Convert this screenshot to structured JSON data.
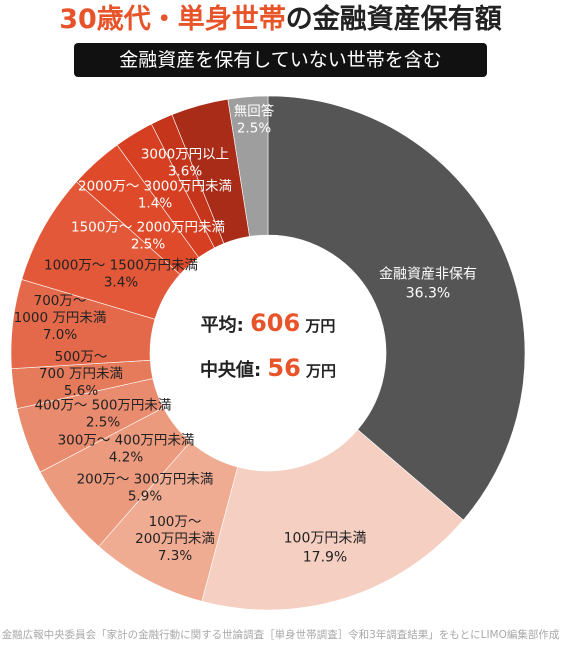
{
  "header": {
    "title_accent": "30歳代・単身世帯",
    "title_rest": "の金融資産保有額",
    "subtitle": "金融資産を保有していない世帯を含む"
  },
  "center": {
    "average_label": "平均",
    "average_sep": ":",
    "average_value": "606",
    "average_unit": "万円",
    "median_label": "中央値",
    "median_sep": ":",
    "median_value": "56",
    "median_unit": "万円",
    "accent_color": "#e8542a"
  },
  "source": "金融広報中央委員会「家計の金融行動に関する世論調査［単身世帯調査］令和3年調査結果」をもとにLIMO編集部作成",
  "chart_data": {
    "type": "pie",
    "donut": true,
    "categories": [
      "金融資産非保有",
      "100万円未満",
      "100万〜200万円未満",
      "200万〜300万円未満",
      "300万〜400万円未満",
      "400万〜500万円未満",
      "500万〜700万円未満",
      "700万〜1000万円未満",
      "1000万〜1500万円未満",
      "1500万〜2000万円未満",
      "2000万〜3000万円未満",
      "3000万円以上",
      "無回答"
    ],
    "values": [
      36.3,
      17.9,
      7.3,
      5.9,
      4.2,
      2.5,
      5.6,
      7.0,
      3.4,
      2.5,
      1.4,
      3.6,
      2.5
    ],
    "colors": [
      "#555555",
      "#f5cfc1",
      "#f0ab93",
      "#ec9a7e",
      "#e98b6e",
      "#e67b5c",
      "#e4694a",
      "#e25838",
      "#df4a2a",
      "#d73f22",
      "#c4351c",
      "#a92c18",
      "#9e9e9e"
    ],
    "labels": [
      [
        "金融資産非保有",
        "36.3%"
      ],
      [
        "100万円未満",
        "17.9%"
      ],
      [
        "100万〜",
        "200万円未満",
        "7.3%"
      ],
      [
        "200万〜 300万円未満",
        "5.9%"
      ],
      [
        "300万〜 400万円未満",
        "4.2%"
      ],
      [
        "400万〜 500万円未満",
        "2.5%"
      ],
      [
        "500万〜",
        "700 万円未満",
        "5.6%"
      ],
      [
        "700万〜",
        "1000 万円未満",
        "7.0%"
      ],
      [
        "1000万〜 1500万円未満",
        "3.4%"
      ],
      [
        "1500万〜 2000万円未満",
        "2.5%"
      ],
      [
        "2000万〜 3000万円未満",
        "1.4%"
      ],
      [
        "3000万円以上",
        "3.6%"
      ],
      [
        "無回答",
        "2.5%"
      ]
    ],
    "label_colors": [
      "#ffffff",
      "#222222",
      "#222222",
      "#222222",
      "#222222",
      "#222222",
      "#222222",
      "#222222",
      "#222222",
      "#ffffff",
      "#ffffff",
      "#ffffff",
      "#ffffff"
    ],
    "unit": "%"
  }
}
